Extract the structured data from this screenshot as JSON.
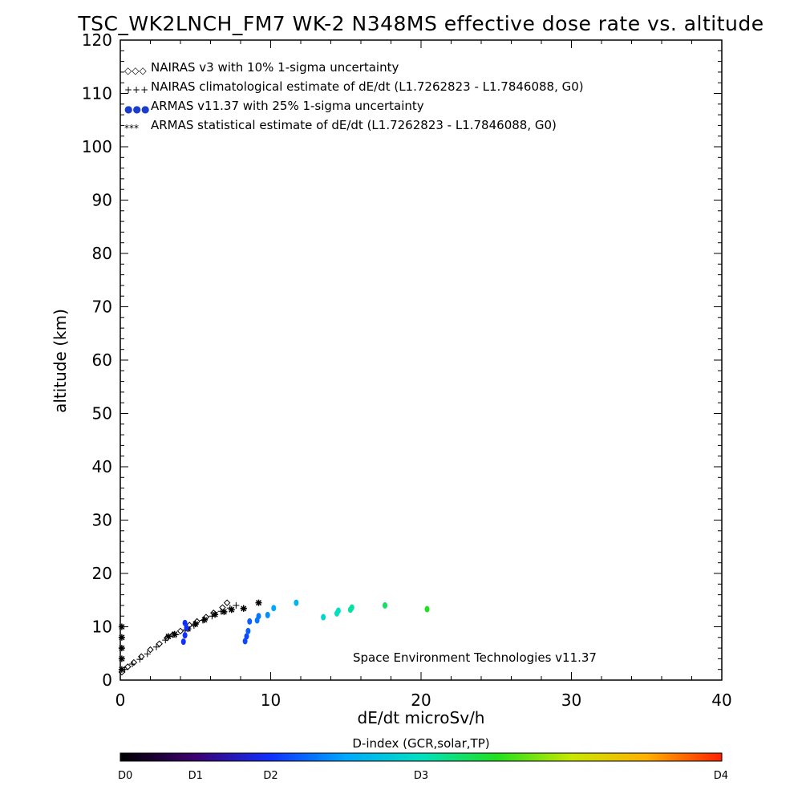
{
  "chart_data": {
    "type": "scatter",
    "title": "TSC_WK2LNCH_FM7 WK-2 N348MS effective dose rate vs. altitude",
    "xlabel": "dE/dt microSv/h",
    "ylabel": "altitude (km)",
    "xlim": [
      0,
      40
    ],
    "ylim": [
      0,
      120
    ],
    "x_ticks": [
      "0",
      "10",
      "20",
      "30",
      "40"
    ],
    "y_ticks": [
      "0",
      "10",
      "20",
      "30",
      "40",
      "50",
      "60",
      "70",
      "80",
      "90",
      "100",
      "110",
      "120"
    ],
    "grid": false,
    "legend_position": "top-left",
    "legend": [
      {
        "symbol": "◇◇◇",
        "label": "NAIRAS v3 with 10% 1-sigma uncertainty",
        "color": "#000000"
      },
      {
        "symbol": "+++",
        "label": "NAIRAS climatological estimate of dE/dt (L1.7262823 - L1.7846088, G0)",
        "color": "#000000"
      },
      {
        "symbol": "●●●",
        "label": "ARMAS v11.37 with 25% 1-sigma uncertainty",
        "color": "#1a3ccf"
      },
      {
        "symbol": "***",
        "label": "ARMAS statistical estimate of dE/dt (L1.7262823 - L1.7846088, G0)",
        "color": "#000000"
      }
    ],
    "watermark": "Space Environment Technologies v11.37",
    "colorbar": {
      "title": "D-index (GCR,solar,TP)",
      "labels": [
        {
          "text": "D0",
          "value": 0
        },
        {
          "text": "D1",
          "value": 1
        },
        {
          "text": "D2",
          "value": 2
        },
        {
          "text": "D3",
          "value": 3
        },
        {
          "text": "D4",
          "value": 4
        }
      ],
      "label_positions": [
        0,
        0.125,
        0.25,
        0.5,
        1.0
      ]
    },
    "series": [
      {
        "name": "NAIRAS v3 with 10% 1-sigma uncertainty",
        "marker": "diamond",
        "x": [
          0.1,
          0.5,
          0.9,
          1.4,
          2.0,
          2.6,
          3.1,
          3.5,
          4.0,
          4.6,
          5.1,
          5.7,
          6.2,
          6.8,
          7.1
        ],
        "y": [
          1.5,
          2.5,
          3.3,
          4.4,
          5.7,
          6.8,
          7.9,
          8.5,
          9.2,
          10.3,
          11.0,
          11.8,
          12.6,
          13.6,
          14.5
        ]
      },
      {
        "name": "NAIRAS climatological estimate of dE/dt (L1.7262823 - L1.7846088, G0)",
        "marker": "plus",
        "x": [
          0.3,
          0.8,
          1.3,
          1.8,
          2.4,
          3.0,
          3.7,
          4.3,
          4.9,
          5.5,
          6.1,
          6.7,
          7.3,
          7.7,
          8.2
        ],
        "y": [
          2.0,
          3.0,
          3.9,
          4.9,
          6.2,
          7.5,
          8.5,
          9.4,
          10.2,
          11.2,
          12.0,
          12.9,
          13.5,
          14.0,
          13.5
        ]
      },
      {
        "name": "ARMAS v11.37 with 25% 1-sigma uncertainty",
        "marker": "circle",
        "x": [
          4.2,
          4.3,
          4.4,
          4.3,
          8.3,
          8.4,
          8.5,
          8.6,
          9.1,
          9.2,
          9.8,
          10.2,
          11.7,
          13.5,
          14.4,
          14.5,
          15.3,
          15.4,
          17.6,
          20.4
        ],
        "y": [
          7.2,
          8.4,
          9.8,
          10.7,
          7.3,
          8.2,
          9.2,
          11.0,
          11.2,
          12.0,
          12.2,
          13.5,
          14.5,
          11.8,
          12.5,
          13.0,
          13.2,
          13.6,
          14.0,
          13.3
        ],
        "d_index": [
          1.0,
          1.0,
          1.0,
          1.0,
          1.1,
          1.1,
          1.2,
          1.2,
          1.3,
          1.3,
          1.4,
          1.5,
          1.6,
          1.9,
          2.0,
          2.0,
          2.1,
          2.1,
          2.3,
          2.5
        ]
      },
      {
        "name": "ARMAS statistical estimate of dE/dt (L1.7262823 - L1.7846088, G0)",
        "marker": "asterisk",
        "x": [
          0.1,
          0.1,
          0.1,
          0.1,
          0.1,
          3.2,
          3.6,
          4.5,
          5.0,
          5.6,
          6.3,
          6.9,
          7.4,
          8.2,
          9.2
        ],
        "y": [
          2.0,
          4.0,
          6.0,
          8.0,
          10.0,
          8.2,
          8.6,
          9.6,
          10.5,
          11.3,
          12.3,
          12.8,
          13.2,
          13.4,
          14.5
        ]
      }
    ]
  }
}
